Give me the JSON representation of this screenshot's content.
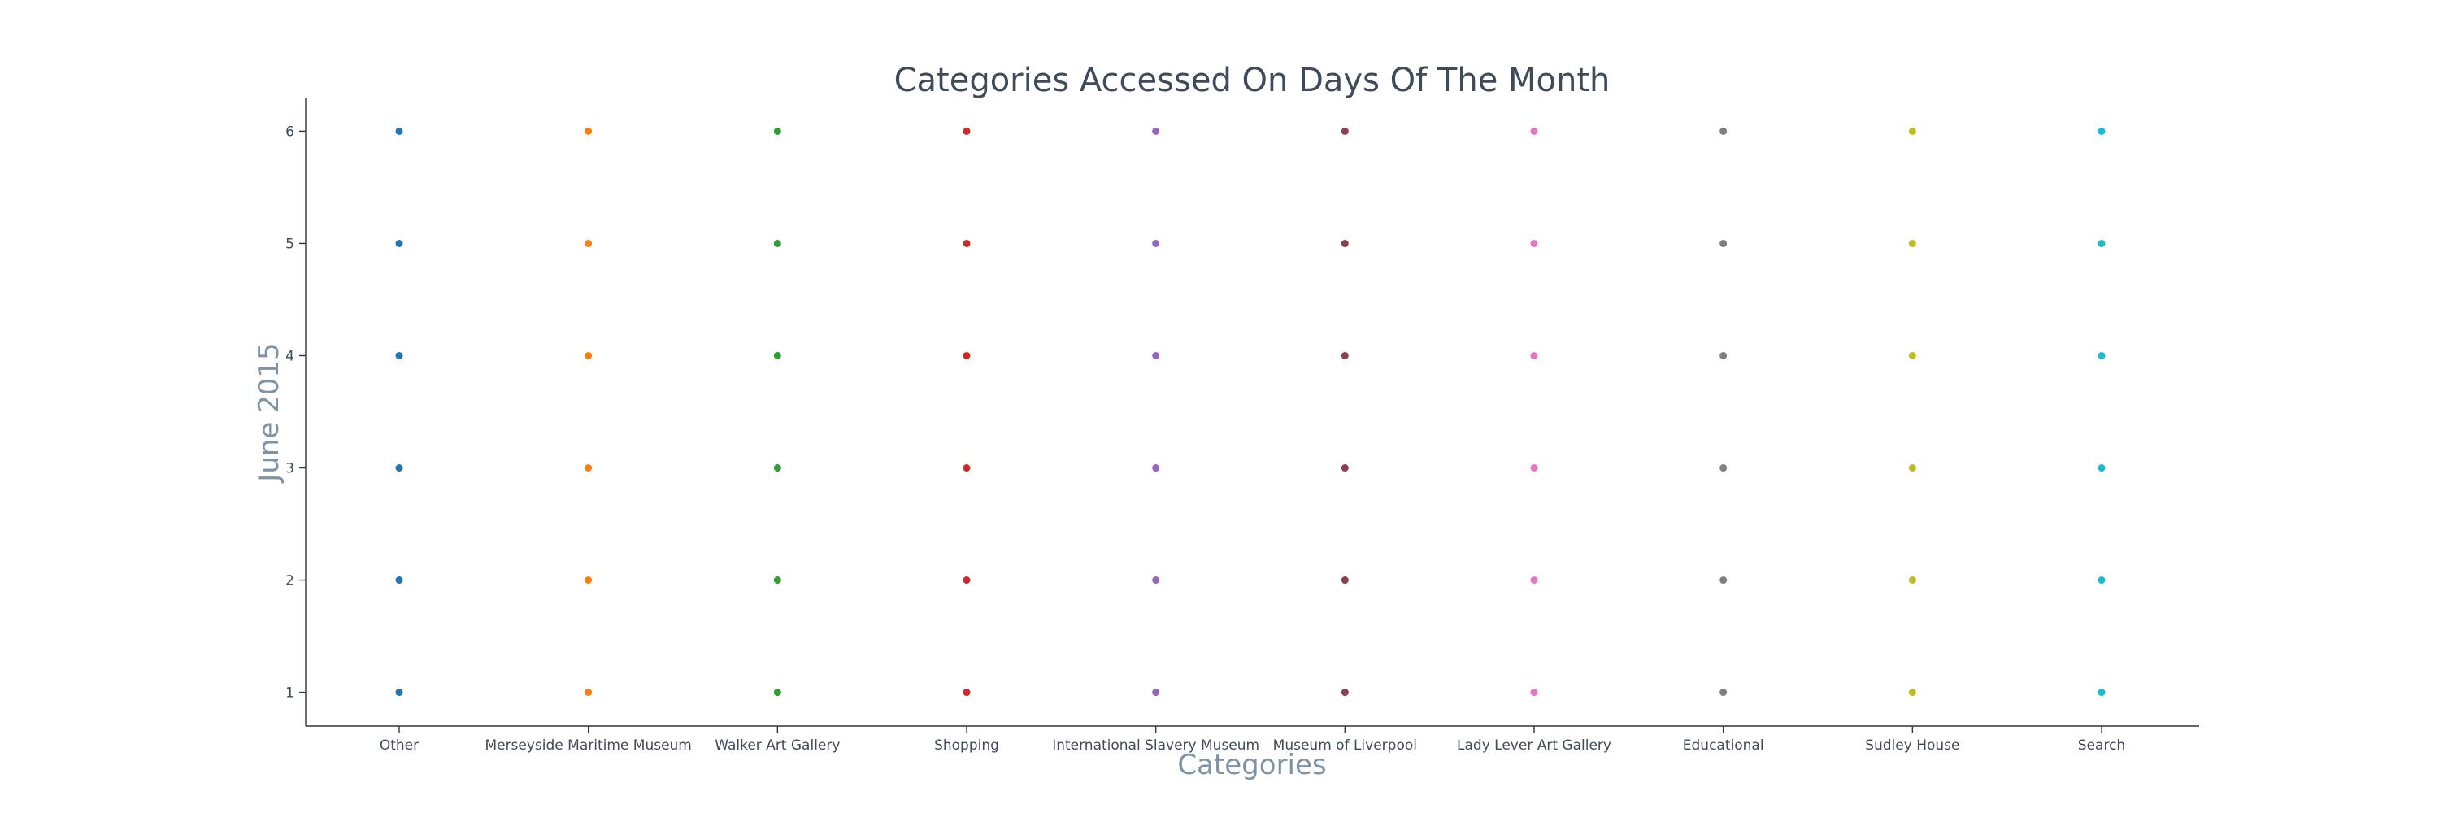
{
  "chart_data": {
    "type": "scatter",
    "title": "Categories Accessed On Days Of The Month",
    "xlabel": "Categories",
    "ylabel": "June 2015",
    "categories": [
      "Other",
      "Merseyside Maritime Museum",
      "Walker Art Gallery",
      "Shopping",
      "International Slavery Museum",
      "Museum of Liverpool",
      "Lady Lever Art Gallery",
      "Educational",
      "Sudley House",
      "Search"
    ],
    "yticks": [
      1,
      2,
      3,
      4,
      5,
      6
    ],
    "ylim": [
      0.7,
      6.3
    ],
    "grid": false,
    "series": [
      {
        "category": "Other",
        "color": "#1f77b4",
        "values": [
          1,
          2,
          3,
          4,
          5,
          6
        ]
      },
      {
        "category": "Merseyside Maritime Museum",
        "color": "#ff7f0e",
        "values": [
          1,
          2,
          3,
          4,
          5,
          6
        ]
      },
      {
        "category": "Walker Art Gallery",
        "color": "#2ca02c",
        "values": [
          1,
          2,
          3,
          4,
          5,
          6
        ]
      },
      {
        "category": "Shopping",
        "color": "#d62728",
        "values": [
          1,
          2,
          3,
          4,
          5,
          6
        ]
      },
      {
        "category": "International Slavery Museum",
        "color": "#9467bd",
        "values": [
          1,
          2,
          3,
          4,
          5,
          6
        ]
      },
      {
        "category": "Museum of Liverpool",
        "color": "#8c3f4f",
        "values": [
          1,
          2,
          3,
          4,
          5,
          6
        ]
      },
      {
        "category": "Lady Lever Art Gallery",
        "color": "#e377c2",
        "values": [
          1,
          2,
          3,
          4,
          5,
          6
        ]
      },
      {
        "category": "Educational",
        "color": "#7f7f7f",
        "values": [
          1,
          2,
          3,
          4,
          5,
          6
        ]
      },
      {
        "category": "Sudley House",
        "color": "#bcbd22",
        "values": [
          1,
          2,
          3,
          4,
          5,
          6
        ]
      },
      {
        "category": "Search",
        "color": "#17becf",
        "values": [
          1,
          2,
          3,
          4,
          5,
          6
        ]
      }
    ]
  }
}
